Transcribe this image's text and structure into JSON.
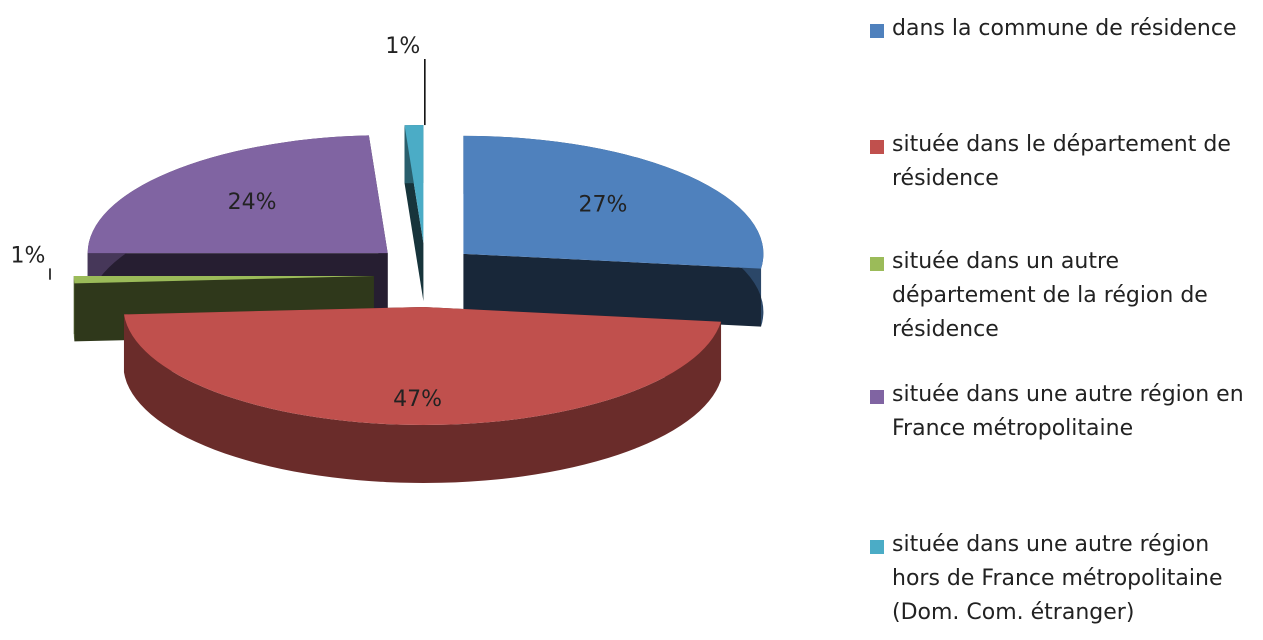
{
  "chart_data": {
    "type": "pie3d",
    "categories": [
      "dans la commune de résidence",
      "située dans le département de résidence",
      "située dans un autre département de la région de résidence",
      "située dans une autre région en France métropolitaine",
      "située dans une autre région hors de France métropolitaine (Dom. Com. étranger)"
    ],
    "values": [
      27,
      47,
      1,
      24,
      1
    ],
    "value_labels": [
      "27%",
      "47%",
      "1%",
      "24%",
      "1%"
    ],
    "colors": [
      "#4f81bd",
      "#c0504d",
      "#9bbb59",
      "#8064a2",
      "#4bacc6"
    ],
    "legend": "right"
  }
}
